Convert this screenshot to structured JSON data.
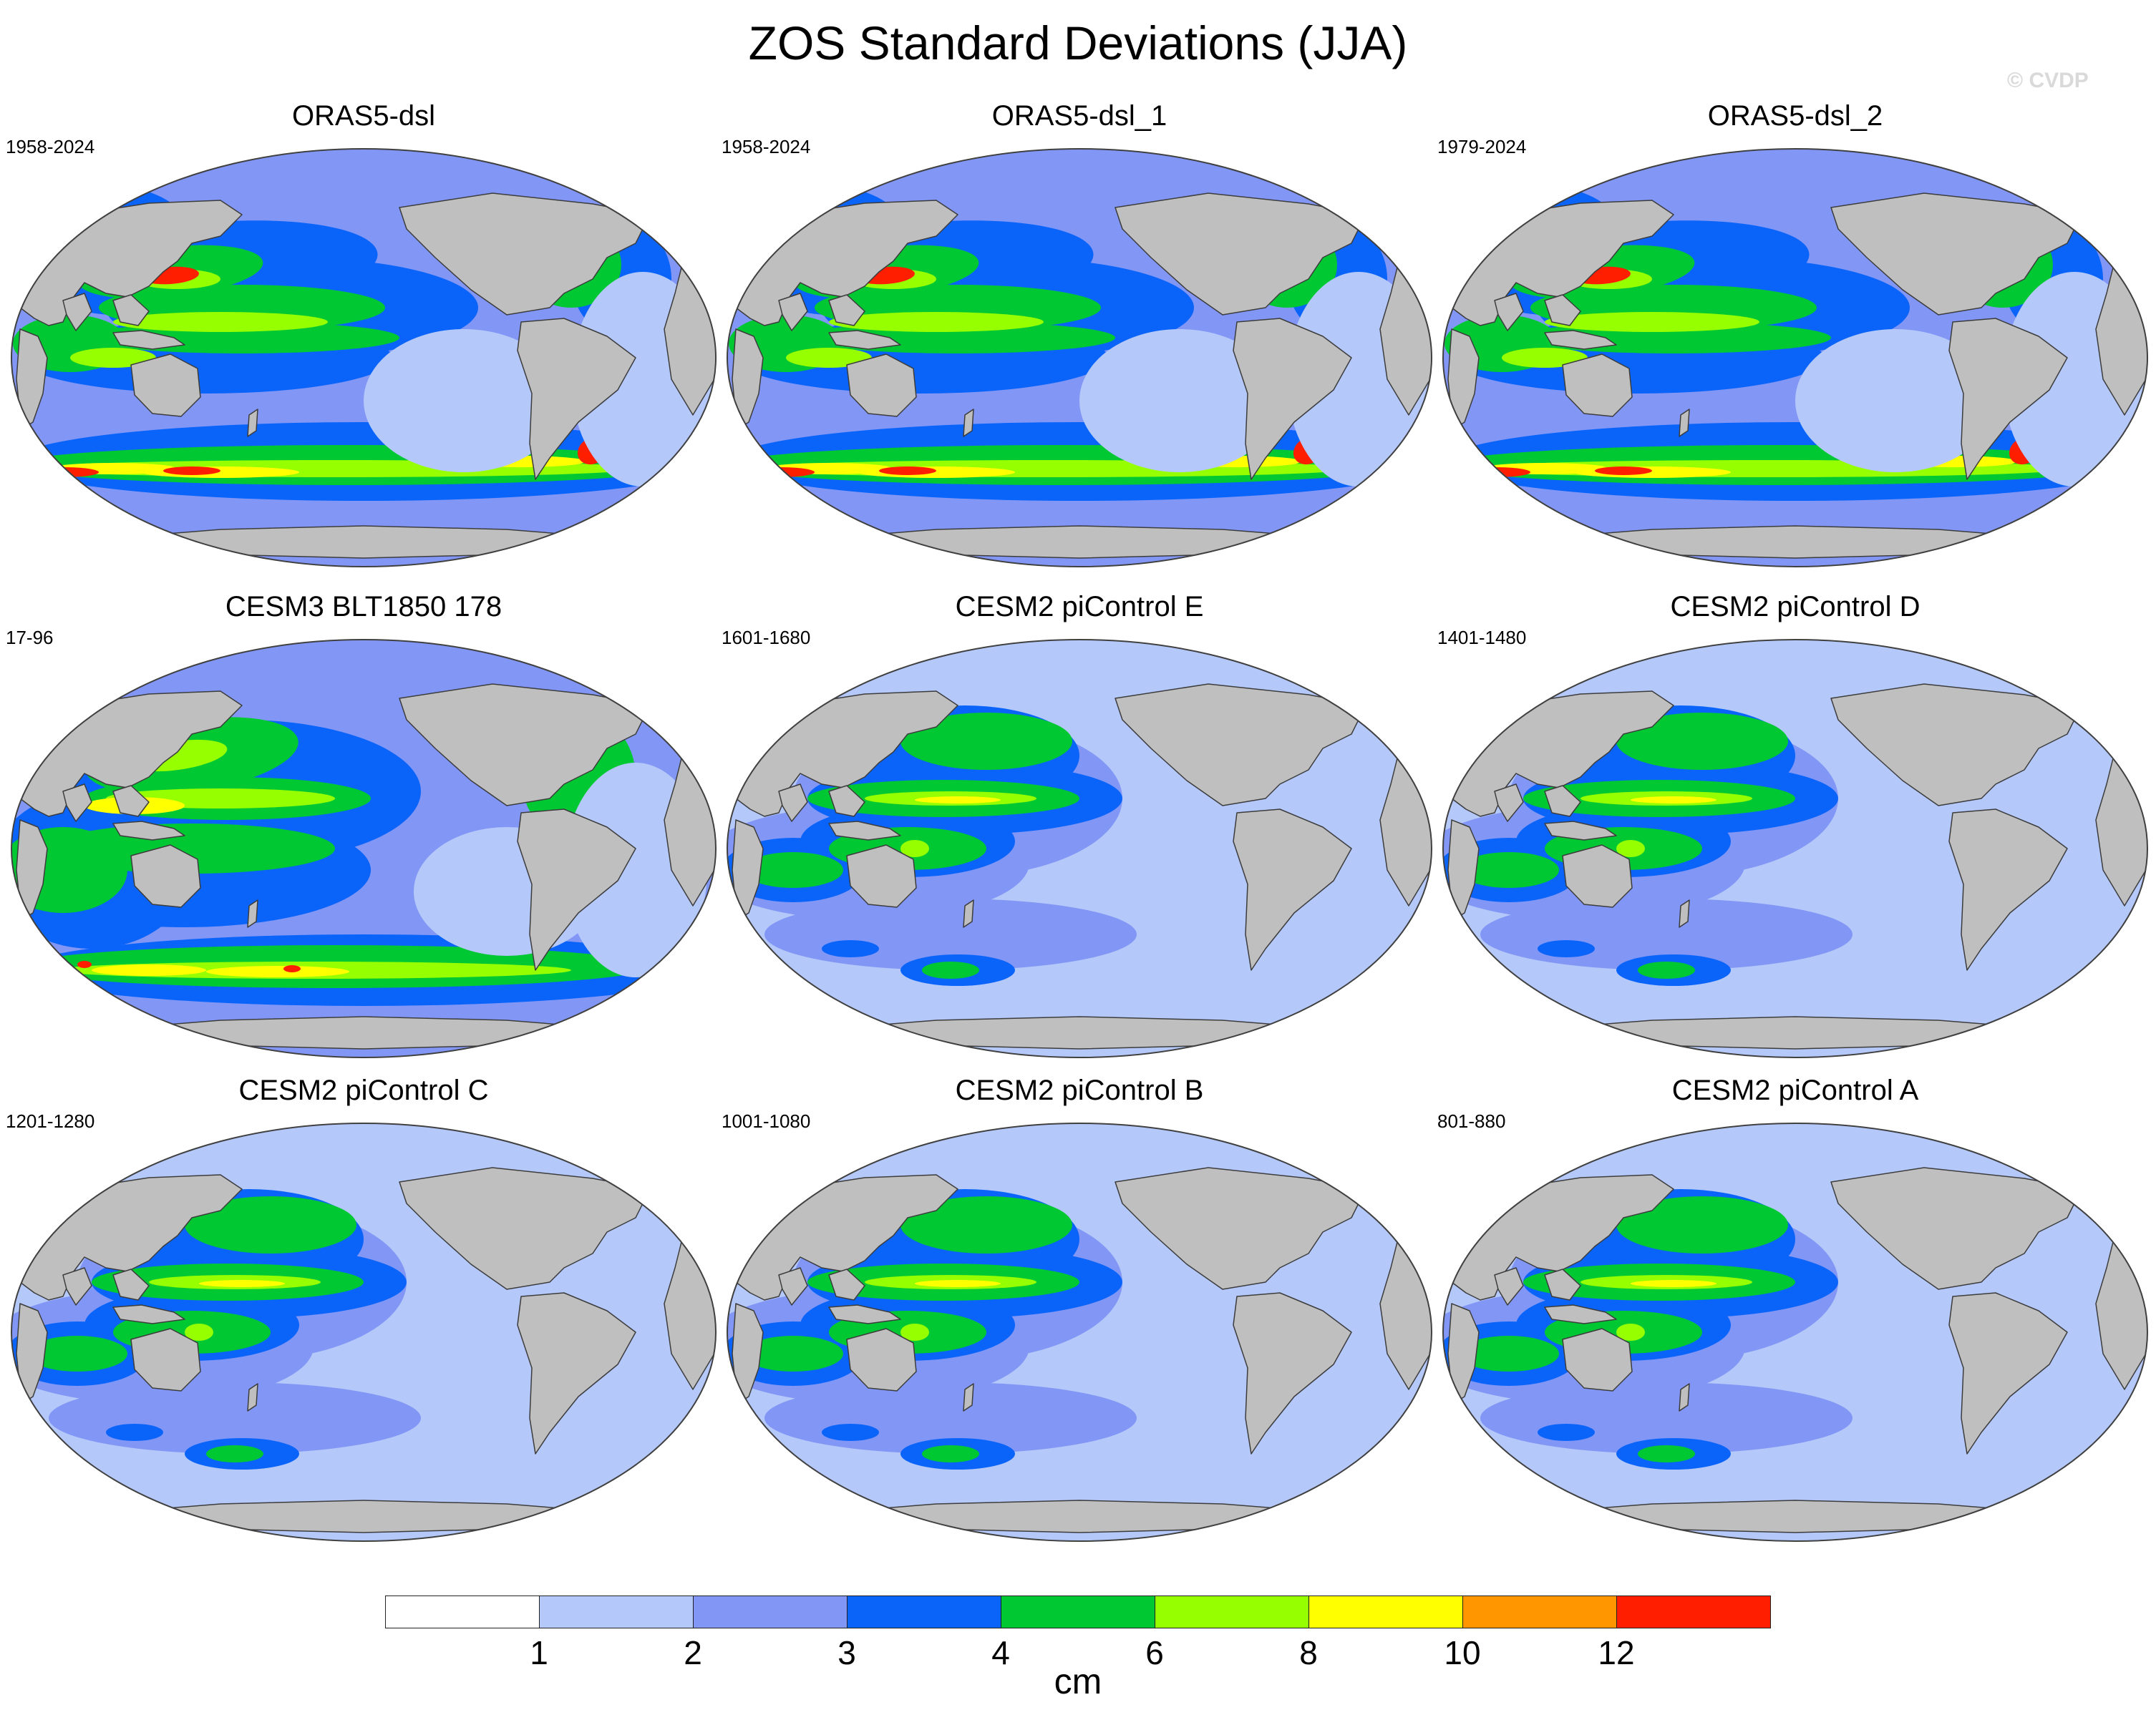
{
  "title": "ZOS Standard Deviations (JJA)",
  "watermark": "© CVDP",
  "panels": [
    {
      "title": "ORAS5-dsl",
      "years": "1958-2024",
      "style": "obs"
    },
    {
      "title": "ORAS5-dsl_1",
      "years": "1958-2024",
      "style": "obs"
    },
    {
      "title": "ORAS5-dsl_2",
      "years": "1979-2024",
      "style": "obs"
    },
    {
      "title": "CESM3 BLT1850 178",
      "years": "17-96",
      "style": "cesm3"
    },
    {
      "title": "CESM2 piControl E",
      "years": "1601-1680",
      "style": "cesm2"
    },
    {
      "title": "CESM2 piControl D",
      "years": "1401-1480",
      "style": "cesm2"
    },
    {
      "title": "CESM2 piControl C",
      "years": "1201-1280",
      "style": "cesm2"
    },
    {
      "title": "CESM2 piControl B",
      "years": "1001-1080",
      "style": "cesm2"
    },
    {
      "title": "CESM2 piControl A",
      "years": "801-880",
      "style": "cesm2"
    }
  ],
  "colorbar": {
    "unit": "cm",
    "levels": [
      "1",
      "2",
      "3",
      "4",
      "6",
      "8",
      "10",
      "12"
    ],
    "colors": [
      "#ffffff",
      "#b4c8fa",
      "#8296f5",
      "#0a64fa",
      "#00c832",
      "#96ff00",
      "#ffff00",
      "#ff9600",
      "#ff1e00"
    ]
  },
  "colors": {
    "land": "#bfbfbf",
    "coast": "#3c3c3c"
  }
}
